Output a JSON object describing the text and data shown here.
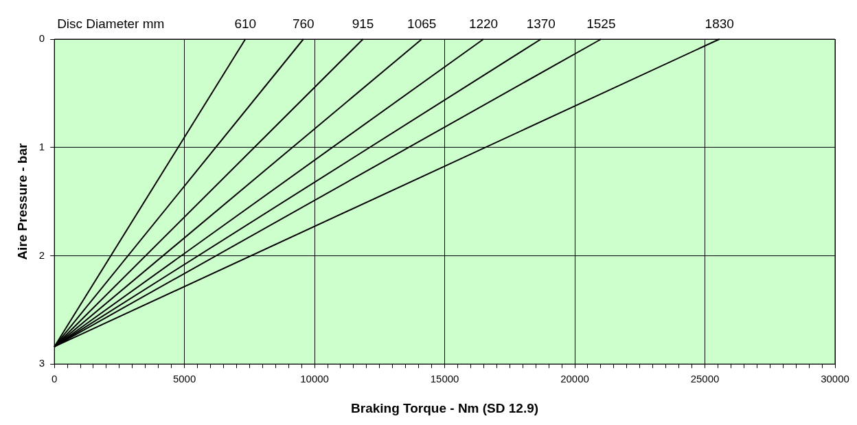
{
  "chart_data": {
    "type": "line",
    "xlabel": "Braking Torque - Nm (SD 12.9)",
    "ylabel": "Aire Pressure - bar",
    "annotations": [
      "Disc Diameter mm"
    ],
    "xlim": [
      0,
      30000
    ],
    "ylim": [
      3,
      0
    ],
    "xticks": [
      0,
      {
        "value": 500,
        "label": null
      },
      {
        "value": 1000,
        "label": null
      },
      {
        "value": 1500,
        "label": null
      },
      {
        "value": 2000,
        "label": null
      },
      {
        "value": 2500,
        "label": null
      },
      {
        "value": 3000,
        "label": null
      },
      {
        "value": 3500,
        "label": null
      },
      {
        "value": 4000,
        "label": null
      },
      {
        "value": 4500,
        "label": null
      },
      5000,
      {
        "value": 5500,
        "label": null
      },
      {
        "value": 6000,
        "label": null
      },
      {
        "value": 6500,
        "label": null
      },
      {
        "value": 7000,
        "label": null
      },
      {
        "value": 7500,
        "label": null
      },
      {
        "value": 8000,
        "label": null
      },
      {
        "value": 8500,
        "label": null
      },
      {
        "value": 9000,
        "label": null
      },
      {
        "value": 9500,
        "label": null
      },
      10000,
      {
        "value": 10500,
        "label": null
      },
      {
        "value": 11000,
        "label": null
      },
      {
        "value": 11500,
        "label": null
      },
      {
        "value": 12000,
        "label": null
      },
      {
        "value": 12500,
        "label": null
      },
      {
        "value": 13000,
        "label": null
      },
      {
        "value": 13500,
        "label": null
      },
      {
        "value": 14000,
        "label": null
      },
      {
        "value": 14500,
        "label": null
      },
      15000,
      {
        "value": 15500,
        "label": null
      },
      {
        "value": 16000,
        "label": null
      },
      {
        "value": 16500,
        "label": null
      },
      {
        "value": 17000,
        "label": null
      },
      {
        "value": 17500,
        "label": null
      },
      {
        "value": 18000,
        "label": null
      },
      {
        "value": 18500,
        "label": null
      },
      {
        "value": 19000,
        "label": null
      },
      {
        "value": 19500,
        "label": null
      },
      20000,
      {
        "value": 20500,
        "label": null
      },
      {
        "value": 21000,
        "label": null
      },
      {
        "value": 21500,
        "label": null
      },
      {
        "value": 22000,
        "label": null
      },
      {
        "value": 22500,
        "label": null
      },
      {
        "value": 23000,
        "label": null
      },
      {
        "value": 23500,
        "label": null
      },
      {
        "value": 24000,
        "label": null
      },
      {
        "value": 24500,
        "label": null
      },
      25000,
      {
        "value": 25500,
        "label": null
      },
      {
        "value": 26000,
        "label": null
      },
      {
        "value": 26500,
        "label": null
      },
      {
        "value": 27000,
        "label": null
      },
      {
        "value": 27500,
        "label": null
      },
      {
        "value": 28000,
        "label": null
      },
      {
        "value": 28500,
        "label": null
      },
      {
        "value": 29000,
        "label": null
      },
      {
        "value": 29500,
        "label": null
      },
      30000
    ],
    "yticks": [
      0,
      1,
      2,
      3
    ],
    "grid": true,
    "legend": false,
    "marker": "none",
    "line_style": "solid",
    "series": [
      {
        "name": "610",
        "color": "#000000",
        "x": [
          0,
          7340
        ],
        "values": [
          2.84,
          0
        ]
      },
      {
        "name": "760",
        "color": "#000000",
        "x": [
          0,
          9570
        ],
        "values": [
          2.84,
          0
        ]
      },
      {
        "name": "915",
        "color": "#000000",
        "x": [
          0,
          11860
        ],
        "values": [
          2.84,
          0
        ]
      },
      {
        "name": "1065",
        "color": "#000000",
        "x": [
          0,
          14120
        ],
        "values": [
          2.84,
          0
        ]
      },
      {
        "name": "1220",
        "color": "#000000",
        "x": [
          0,
          16490
        ],
        "values": [
          2.84,
          0
        ]
      },
      {
        "name": "1370",
        "color": "#000000",
        "x": [
          0,
          18700
        ],
        "values": [
          2.84,
          0
        ]
      },
      {
        "name": "1525",
        "color": "#000000",
        "x": [
          0,
          21010
        ],
        "values": [
          2.84,
          0
        ]
      },
      {
        "name": "1830",
        "color": "#000000",
        "x": [
          0,
          25560
        ],
        "values": [
          2.84,
          0
        ]
      }
    ]
  }
}
